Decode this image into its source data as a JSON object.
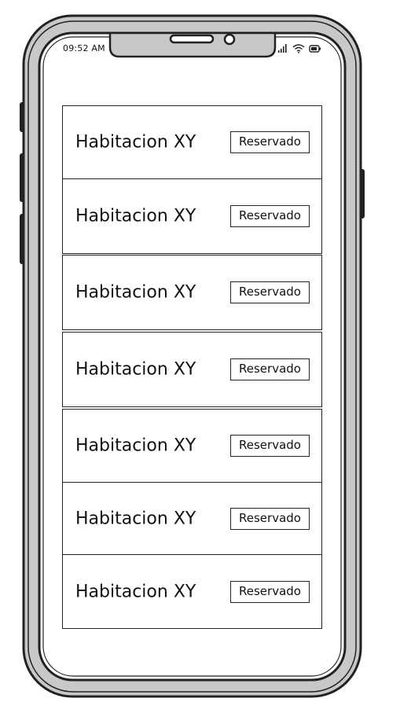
{
  "status_bar": {
    "time": "09:52 AM",
    "icons": [
      "signal-icon",
      "wifi-icon",
      "battery-icon"
    ]
  },
  "rooms": [
    {
      "name": "Habitacion XY",
      "status": "Reservado"
    },
    {
      "name": "Habitacion XY",
      "status": "Reservado"
    },
    {
      "name": "Habitacion XY",
      "status": "Reservado"
    },
    {
      "name": "Habitacion XY",
      "status": "Reservado"
    },
    {
      "name": "Habitacion XY",
      "status": "Reservado"
    },
    {
      "name": "Habitacion XY",
      "status": "Reservado"
    },
    {
      "name": "Habitacion XY",
      "status": "Reservado"
    }
  ],
  "colors": {
    "frame": "#c8c8c8",
    "outline": "#222222",
    "screen": "#ffffff"
  }
}
